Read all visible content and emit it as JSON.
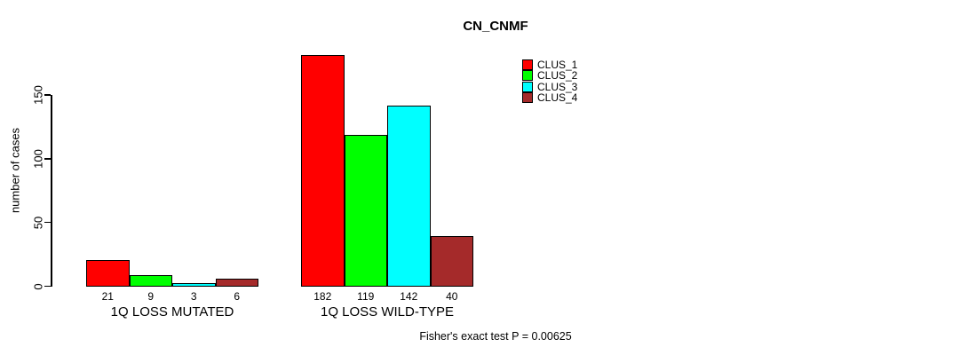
{
  "chart_data": {
    "type": "bar",
    "title": "CN_CNMF",
    "ylabel": "number of cases",
    "xlabel": "",
    "categories": [
      "1Q LOSS MUTATED",
      "1Q LOSS WILD-TYPE"
    ],
    "series": [
      {
        "name": "CLUS_1",
        "color": "#FF0000",
        "values": [
          21,
          182
        ]
      },
      {
        "name": "CLUS_2",
        "color": "#00FF00",
        "values": [
          9,
          119
        ]
      },
      {
        "name": "CLUS_3",
        "color": "#00FFFF",
        "values": [
          3,
          142
        ]
      },
      {
        "name": "CLUS_4",
        "color": "#A52A2A",
        "values": [
          6,
          40
        ]
      }
    ],
    "value_labels": [
      [
        "21",
        "9",
        "3",
        "6"
      ],
      [
        "182",
        "119",
        "142",
        "40"
      ]
    ],
    "yticks": [
      0,
      50,
      100,
      150
    ],
    "ylim": [
      0,
      150
    ],
    "grid": false,
    "legend_position": "top-right",
    "bar_border_color": "#000000",
    "footnote": "Fisher's exact test P = 0.00625"
  }
}
